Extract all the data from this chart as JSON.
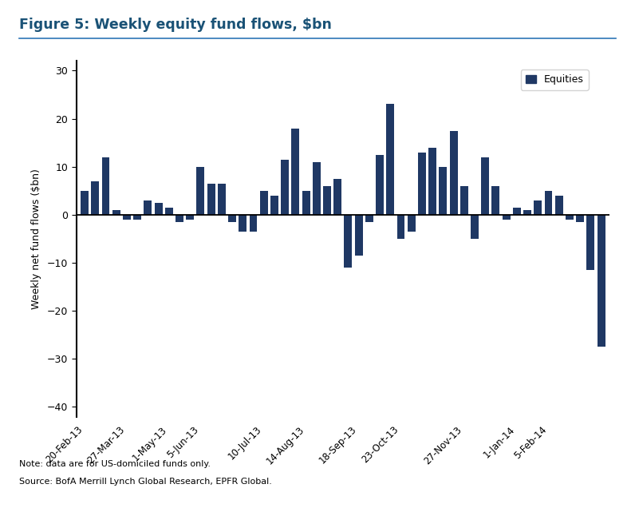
{
  "title": "Figure 5: Weekly equity fund flows, $bn",
  "ylabel": "Weekly net fund flows ($bn)",
  "bar_color": "#1f3864",
  "legend_label": "Equities",
  "ylim": [
    -42,
    32
  ],
  "yticks": [
    -40,
    -30,
    -20,
    -10,
    0,
    10,
    20,
    30
  ],
  "note1": "Note: data are for US-domiciled funds only.",
  "note2": "Source: BofA Merrill Lynch Global Research, EPFR Global.",
  "tick_labels": [
    "20-Feb-13",
    "27-Mar-13",
    "1-May-13",
    "5-Jun-13",
    "10-Jul-13",
    "14-Aug-13",
    "18-Sep-13",
    "23-Oct-13",
    "27-Nov-13",
    "1-Jan-14",
    "5-Feb-14"
  ],
  "bar_values": [
    5.0,
    7.0,
    12.0,
    1.0,
    -1.0,
    -1.0,
    3.0,
    2.5,
    1.5,
    -1.5,
    -1.0,
    10.0,
    6.5,
    6.5,
    -1.5,
    -3.5,
    -3.5,
    5.0,
    4.0,
    11.5,
    18.0,
    5.0,
    11.0,
    6.0,
    7.5,
    -11.0,
    -8.5,
    -1.5,
    12.5,
    23.0,
    -5.0,
    -3.5,
    13.0,
    14.0,
    10.0,
    17.5,
    6.0,
    -5.0,
    12.0,
    6.0,
    -1.0,
    1.5,
    1.0,
    3.0,
    5.0,
    4.0,
    -1.0,
    -1.5,
    -11.5,
    -27.5
  ],
  "tick_indices": [
    0,
    4,
    8,
    11,
    17,
    21,
    26,
    30,
    36,
    41,
    44
  ],
  "background_color": "#ffffff",
  "title_color": "#1a5276",
  "title_line_color": "#2e75b6"
}
